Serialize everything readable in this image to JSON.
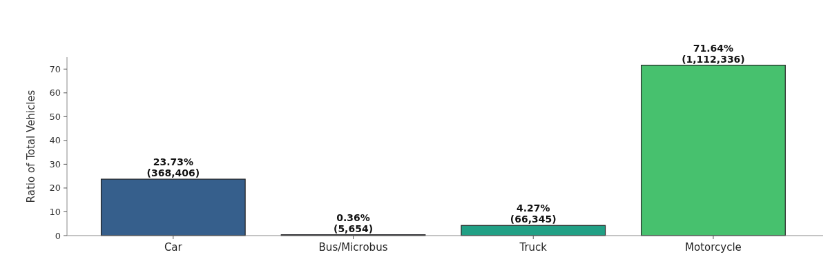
{
  "chart_data": {
    "type": "bar",
    "ylabel": "Ratio of Total Vehicles",
    "categories": [
      "Car",
      "Bus/Microbus",
      "Truck",
      "Motorcycle"
    ],
    "values": [
      23.73,
      0.36,
      4.27,
      71.64
    ],
    "colors": [
      "#365f8c",
      "#433e85",
      "#21a085",
      "#47c16e"
    ],
    "value_labels": [
      "23.73%\n(368,406)",
      "0.36%\n(5,654)",
      "4.27%\n(66,345)",
      "71.64%\n(1,112,336)"
    ],
    "ylim": [
      0,
      75
    ],
    "yticks": [
      0,
      10,
      20,
      30,
      40,
      50,
      60,
      70
    ]
  }
}
